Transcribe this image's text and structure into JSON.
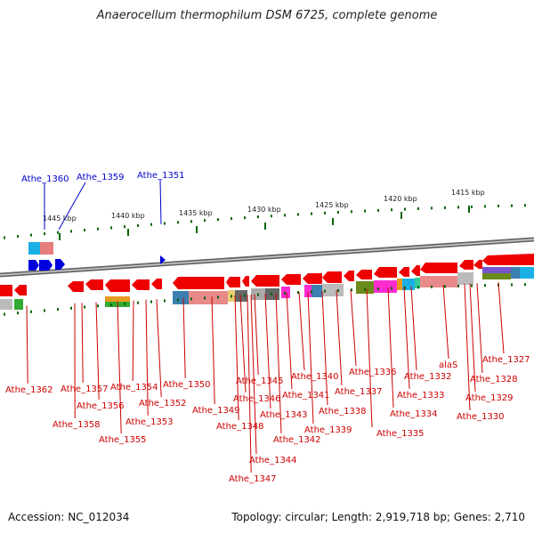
{
  "title": "Anaerocellum thermophilum DSM 6725, complete genome",
  "footer": {
    "accession": "Accession: NC_012034",
    "summary": "Topology: circular; Length: 2,919,718 bp; Genes: 2,710"
  },
  "scale_ticks": [
    "1445 kbp",
    "1440 kbp",
    "1435 kbp",
    "1430 kbp",
    "1425 kbp",
    "1420 kbp",
    "1415 kbp"
  ],
  "upper_labels": [
    "Athe_1360",
    "Athe_1359",
    "Athe_1351"
  ],
  "lower_labels": [
    "Athe_1362",
    "Athe_1357",
    "Athe_1358",
    "Athe_1356",
    "Athe_1355",
    "Athe_1354",
    "Athe_1353",
    "Athe_1352",
    "Athe_1350",
    "Athe_1349",
    "Athe_1348",
    "Athe_1347",
    "Athe_1346",
    "Athe_1345",
    "Athe_1344",
    "Athe_1343",
    "Athe_1342",
    "Athe_1341",
    "Athe_1340",
    "Athe_1339",
    "Athe_1338",
    "Athe_1337",
    "Athe_1336",
    "Athe_1335",
    "Athe_1334",
    "Athe_1333",
    "Athe_1332",
    "alaS",
    "Athe_1330",
    "Athe_1329",
    "Athe_1328",
    "Athe_1327"
  ],
  "colors": {
    "gene_forward": "#0000dd",
    "gene_reverse": "#ee0000",
    "label_forward": "#0000cc",
    "label_reverse": "#cc0000",
    "scale": "#006600",
    "backbone": "#777777"
  }
}
